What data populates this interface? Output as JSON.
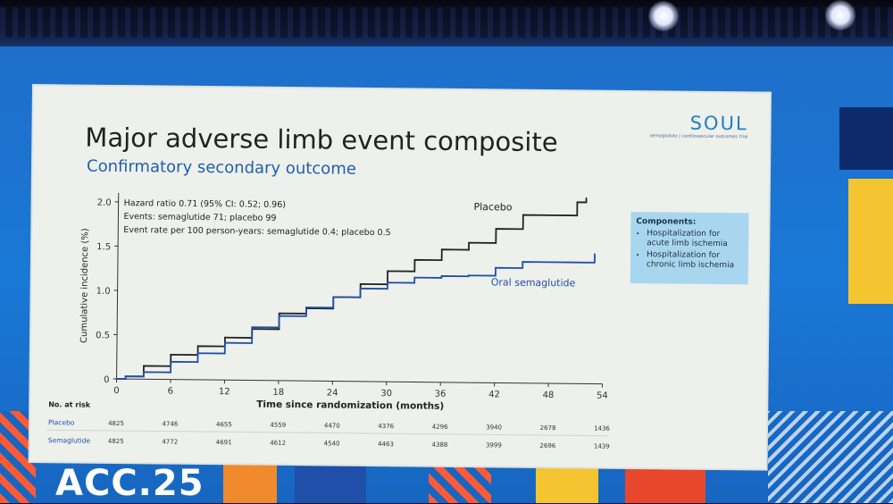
{
  "slide": {
    "title": "Major adverse limb event composite",
    "subtitle": "Confirmatory secondary outcome",
    "brand_name": "SOUL",
    "brand_tagline": "semaglutide | cardiovascular outcomes trial"
  },
  "components": {
    "heading": "Components:",
    "items": [
      "Hospitalization for acute limb ischemia",
      "Hospitalization for chronic limb ischemia"
    ]
  },
  "venue": {
    "logo": "ACC.25"
  },
  "chart_data": {
    "type": "line",
    "xlabel": "Time since randomization (months)",
    "ylabel": "Cumulative incidence (%)",
    "xlim": [
      0,
      54
    ],
    "ylim": [
      0,
      2.1
    ],
    "xticks": [
      0,
      6,
      12,
      18,
      24,
      30,
      36,
      42,
      48,
      54
    ],
    "yticks": [
      0,
      0.5,
      1.0,
      1.5,
      2.0
    ],
    "ytick_labels": [
      "0",
      "0.5",
      "1.0",
      "1.5",
      "2.0"
    ],
    "grid": false,
    "annotations": [
      "Hazard ratio 0.71 (95% CI: 0.52; 0.96)",
      "Events: semaglutide 71; placebo 99",
      "Event rate per 100 person-years: semaglutide 0.4; placebo 0.5"
    ],
    "series": [
      {
        "name": "Placebo",
        "color": "#222222",
        "x": [
          0,
          1,
          3,
          6,
          9,
          12,
          15,
          18,
          21,
          24,
          27,
          30,
          33,
          36,
          39,
          42,
          45,
          48,
          50,
          51,
          52
        ],
        "y": [
          0,
          0.03,
          0.15,
          0.28,
          0.38,
          0.48,
          0.58,
          0.76,
          0.82,
          0.95,
          1.1,
          1.25,
          1.38,
          1.5,
          1.58,
          1.74,
          1.9,
          1.9,
          1.9,
          2.05,
          2.1
        ]
      },
      {
        "name": "Oral semaglutide",
        "color": "#1f4fa8",
        "x": [
          0,
          1,
          3,
          6,
          9,
          12,
          15,
          18,
          21,
          24,
          27,
          30,
          33,
          36,
          39,
          42,
          45,
          48,
          51,
          53
        ],
        "y": [
          0,
          0.03,
          0.08,
          0.2,
          0.3,
          0.42,
          0.6,
          0.73,
          0.83,
          0.95,
          1.05,
          1.12,
          1.18,
          1.2,
          1.21,
          1.3,
          1.37,
          1.37,
          1.37,
          1.47
        ]
      }
    ],
    "risk_table": {
      "header": "No. at risk",
      "rows": [
        {
          "label": "Placebo",
          "values": [
            "4825",
            "4746",
            "4655",
            "4559",
            "4470",
            "4376",
            "4296",
            "3940",
            "2678",
            "1436"
          ]
        },
        {
          "label": "Semaglutide",
          "values": [
            "4825",
            "4772",
            "4691",
            "4612",
            "4540",
            "4463",
            "4388",
            "3999",
            "2696",
            "1439"
          ]
        }
      ]
    }
  }
}
